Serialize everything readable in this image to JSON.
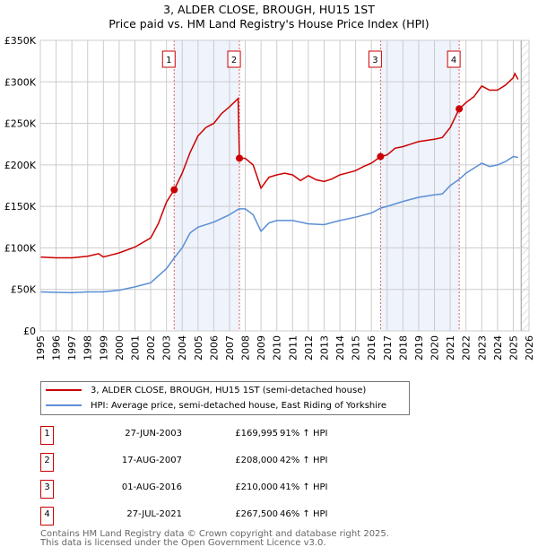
{
  "title_line1": "3, ALDER CLOSE, BROUGH, HU15 1ST",
  "title_line2": "Price paid vs. HM Land Registry's House Price Index (HPI)",
  "chart_data": {
    "type": "line",
    "ylabel": "",
    "xlabel": "",
    "ylim": [
      0,
      350000
    ],
    "xlim": [
      1995,
      2026
    ],
    "yticks": [
      0,
      50000,
      100000,
      150000,
      200000,
      250000,
      300000,
      350000
    ],
    "ytick_labels": [
      "£0",
      "£50K",
      "£100K",
      "£150K",
      "£200K",
      "£250K",
      "£300K",
      "£350K"
    ],
    "xticks": [
      1995,
      1996,
      1997,
      1998,
      1999,
      2000,
      2001,
      2002,
      2003,
      2004,
      2005,
      2006,
      2007,
      2008,
      2009,
      2010,
      2011,
      2012,
      2013,
      2014,
      2015,
      2016,
      2017,
      2018,
      2019,
      2020,
      2021,
      2022,
      2023,
      2024,
      2025,
      2026
    ],
    "grid": true,
    "forecast_hatch_from": 2025.5,
    "shaded_ranges": [
      [
        2003.49,
        2007.63
      ],
      [
        2016.58,
        2021.57
      ]
    ],
    "colors": {
      "property": "#cc0000",
      "hpi": "#5b8fd6",
      "shade": "#eef3fc",
      "marker_line": "#e06060"
    },
    "series": [
      {
        "name": "3, ALDER CLOSE, BROUGH, HU15 1ST (semi-detached house)",
        "color": "#cc0000",
        "x": [
          1995,
          1996,
          1997,
          1998,
          1998.7,
          1999,
          2000,
          2001,
          2002,
          2002.5,
          2003,
          2003.49,
          2004,
          2004.5,
          2005,
          2005.5,
          2006,
          2006.5,
          2007,
          2007.55,
          2007.63,
          2008,
          2008.5,
          2009,
          2009.5,
          2010,
          2010.5,
          2011,
          2011.5,
          2012,
          2012.5,
          2013,
          2013.5,
          2014,
          2015,
          2015.5,
          2016,
          2016.58,
          2017,
          2017.5,
          2018,
          2018.5,
          2019,
          2020,
          2020.5,
          2021,
          2021.57,
          2022,
          2022.5,
          2023,
          2023.5,
          2024,
          2024.5,
          2025,
          2025.1,
          2025.3
        ],
        "y": [
          89000,
          88000,
          88000,
          90000,
          93000,
          89000,
          94000,
          101000,
          112000,
          130000,
          155000,
          169995,
          190000,
          215000,
          235000,
          245000,
          250000,
          262000,
          270000,
          280000,
          208000,
          208000,
          200000,
          172000,
          185000,
          188000,
          190000,
          188000,
          181000,
          187000,
          182000,
          180000,
          183000,
          188000,
          193000,
          198000,
          202000,
          210000,
          212000,
          220000,
          222000,
          225000,
          228000,
          231000,
          233000,
          245000,
          267500,
          275000,
          282000,
          295000,
          290000,
          290000,
          296000,
          305000,
          310000,
          303000
        ]
      },
      {
        "name": "HPI: Average price, semi-detached house, East Riding of Yorkshire",
        "color": "#5b8fd6",
        "x": [
          1995,
          1996,
          1997,
          1998,
          1999,
          2000,
          2001,
          2002,
          2003,
          2003.5,
          2004,
          2004.5,
          2005,
          2006,
          2007,
          2007.6,
          2008,
          2008.5,
          2009,
          2009.5,
          2010,
          2011,
          2012,
          2013,
          2014,
          2015,
          2016,
          2016.6,
          2017,
          2018,
          2019,
          2020,
          2020.5,
          2021,
          2021.6,
          2022,
          2023,
          2023.5,
          2024,
          2024.5,
          2025,
          2025.3
        ],
        "y": [
          47000,
          46500,
          46000,
          47000,
          47000,
          49000,
          53000,
          58000,
          75000,
          88000,
          100000,
          118000,
          125000,
          131000,
          140000,
          147000,
          147000,
          140000,
          120000,
          130000,
          133000,
          133000,
          129000,
          128000,
          133000,
          137000,
          142000,
          148000,
          150000,
          156000,
          161000,
          164000,
          165000,
          175000,
          183000,
          190000,
          202000,
          198000,
          200000,
          204000,
          210000,
          209000
        ]
      }
    ],
    "sales": [
      {
        "label": "1",
        "x": 2003.49,
        "y": 169995
      },
      {
        "label": "2",
        "x": 2007.63,
        "y": 208000
      },
      {
        "label": "3",
        "x": 2016.58,
        "y": 210000
      },
      {
        "label": "4",
        "x": 2021.57,
        "y": 267500
      }
    ]
  },
  "legend": {
    "property": "3, ALDER CLOSE, BROUGH, HU15 1ST (semi-detached house)",
    "hpi": "HPI: Average price, semi-detached house, East Riding of Yorkshire"
  },
  "transactions": [
    {
      "num": "1",
      "date": "27-JUN-2003",
      "price": "£169,995",
      "hpi": "91% ↑ HPI"
    },
    {
      "num": "2",
      "date": "17-AUG-2007",
      "price": "£208,000",
      "hpi": "42% ↑ HPI"
    },
    {
      "num": "3",
      "date": "01-AUG-2016",
      "price": "£210,000",
      "hpi": "41% ↑ HPI"
    },
    {
      "num": "4",
      "date": "27-JUL-2021",
      "price": "£267,500",
      "hpi": "46% ↑ HPI"
    }
  ],
  "footer": {
    "line1": "Contains HM Land Registry data © Crown copyright and database right 2025.",
    "line2": "This data is licensed under the Open Government Licence v3.0."
  }
}
